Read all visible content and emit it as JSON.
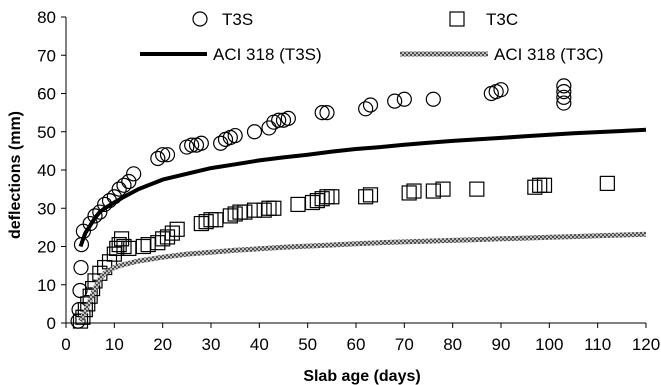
{
  "chart_data": {
    "type": "scatter",
    "xlabel": "Slab age (days)",
    "ylabel": "deflections (mm)",
    "xlim": [
      0,
      120
    ],
    "ylim": [
      0,
      80
    ],
    "xticks": [
      0,
      10,
      20,
      30,
      40,
      50,
      60,
      70,
      80,
      90,
      100,
      110,
      120
    ],
    "yticks": [
      0,
      10,
      20,
      30,
      40,
      50,
      60,
      70,
      80
    ],
    "grid": false,
    "legend_position": "top",
    "series": [
      {
        "name": "T3S",
        "kind": "scatter",
        "marker": "circle",
        "color": "#000000",
        "points": [
          [
            2.5,
            0.5
          ],
          [
            2.7,
            3.5
          ],
          [
            2.9,
            8.5
          ],
          [
            3.1,
            14.5
          ],
          [
            3.2,
            20.5
          ],
          [
            3.6,
            24.0
          ],
          [
            5.0,
            26.0
          ],
          [
            6.0,
            28.0
          ],
          [
            7.0,
            29.0
          ],
          [
            8.0,
            31.0
          ],
          [
            9.0,
            32.0
          ],
          [
            10.0,
            33.0
          ],
          [
            11.0,
            35.0
          ],
          [
            12.0,
            36.0
          ],
          [
            13.0,
            37.0
          ],
          [
            14.0,
            39.0
          ],
          [
            19.0,
            43.0
          ],
          [
            20.0,
            44.0
          ],
          [
            21.0,
            44.0
          ],
          [
            25.0,
            46.0
          ],
          [
            26.0,
            46.5
          ],
          [
            27.0,
            46.5
          ],
          [
            28.0,
            47.0
          ],
          [
            32.0,
            47.0
          ],
          [
            33.0,
            48.0
          ],
          [
            34.0,
            48.5
          ],
          [
            35.0,
            49.0
          ],
          [
            39.0,
            50.0
          ],
          [
            42.0,
            51.0
          ],
          [
            43.0,
            52.5
          ],
          [
            44.0,
            53.0
          ],
          [
            45.0,
            53.0
          ],
          [
            46.0,
            53.5
          ],
          [
            53.0,
            55.0
          ],
          [
            54.0,
            55.0
          ],
          [
            62.0,
            56.0
          ],
          [
            63.0,
            57.0
          ],
          [
            68.0,
            58.0
          ],
          [
            70.0,
            58.5
          ],
          [
            76.0,
            58.5
          ],
          [
            88.0,
            60.0
          ],
          [
            89.0,
            60.5
          ],
          [
            90.0,
            61.0
          ],
          [
            103.0,
            57.5
          ],
          [
            103.0,
            59.0
          ],
          [
            103.0,
            60.5
          ],
          [
            103.0,
            62.0
          ]
        ]
      },
      {
        "name": "T3C",
        "kind": "scatter",
        "marker": "square",
        "color": "#000000",
        "points": [
          [
            3.0,
            0.5
          ],
          [
            3.5,
            1.5
          ],
          [
            4.0,
            3.5
          ],
          [
            4.5,
            5.0
          ],
          [
            5.0,
            7.0
          ],
          [
            5.5,
            9.0
          ],
          [
            6.0,
            11.0
          ],
          [
            7.0,
            13.0
          ],
          [
            8.0,
            14.5
          ],
          [
            9.0,
            16.0
          ],
          [
            10.0,
            18.0
          ],
          [
            10.5,
            19.5
          ],
          [
            11.0,
            20.5
          ],
          [
            11.5,
            22.0
          ],
          [
            12.0,
            20.0
          ],
          [
            13.0,
            19.5
          ],
          [
            16.0,
            20.0
          ],
          [
            17.0,
            20.5
          ],
          [
            19.0,
            21.0
          ],
          [
            20.0,
            22.0
          ],
          [
            21.0,
            22.5
          ],
          [
            22.0,
            23.5
          ],
          [
            23.0,
            24.5
          ],
          [
            28.0,
            26.0
          ],
          [
            29.0,
            26.5
          ],
          [
            30.0,
            27.0
          ],
          [
            31.0,
            27.0
          ],
          [
            34.0,
            28.0
          ],
          [
            35.0,
            28.5
          ],
          [
            36.0,
            29.0
          ],
          [
            37.0,
            29.0
          ],
          [
            39.0,
            29.5
          ],
          [
            41.0,
            29.5
          ],
          [
            42.0,
            30.0
          ],
          [
            43.0,
            30.0
          ],
          [
            48.0,
            31.0
          ],
          [
            51.0,
            31.5
          ],
          [
            52.0,
            32.0
          ],
          [
            53.0,
            32.5
          ],
          [
            54.0,
            33.0
          ],
          [
            55.0,
            33.0
          ],
          [
            62.0,
            33.0
          ],
          [
            63.0,
            33.5
          ],
          [
            71.0,
            34.0
          ],
          [
            72.0,
            34.5
          ],
          [
            76.0,
            34.5
          ],
          [
            78.0,
            35.0
          ],
          [
            85.0,
            35.0
          ],
          [
            97.0,
            35.5
          ],
          [
            98.0,
            36.0
          ],
          [
            99.0,
            36.0
          ],
          [
            112.0,
            36.5
          ]
        ]
      },
      {
        "name": "ACI 318 (T3S)",
        "kind": "line",
        "style": "solid",
        "color": "#000000",
        "x": [
          3,
          4,
          5,
          6,
          7,
          8,
          10,
          12,
          15,
          20,
          25,
          30,
          35,
          40,
          45,
          50,
          55,
          60,
          65,
          70,
          75,
          80,
          85,
          90,
          95,
          100,
          105,
          110,
          115,
          120
        ],
        "y": [
          20,
          23.5,
          25.5,
          27.5,
          29,
          30,
          31.5,
          33,
          35,
          37.5,
          39,
          40.5,
          41.5,
          42.5,
          43.3,
          44,
          44.8,
          45.5,
          46,
          46.6,
          47.1,
          47.6,
          48,
          48.4,
          48.8,
          49.2,
          49.6,
          49.9,
          50.2,
          50.5
        ]
      },
      {
        "name": "ACI 318 (T3C)",
        "kind": "line",
        "style": "hatched",
        "color": "#8a8a8a",
        "x": [
          3,
          4,
          5,
          6,
          7,
          8,
          10,
          12,
          15,
          20,
          25,
          30,
          35,
          40,
          45,
          50,
          55,
          60,
          65,
          70,
          75,
          80,
          85,
          90,
          95,
          100,
          105,
          110,
          115,
          120
        ],
        "y": [
          0.5,
          3,
          6,
          9,
          11.5,
          13,
          14.5,
          15.3,
          16.2,
          17.2,
          18,
          18.5,
          19,
          19.4,
          19.8,
          20.1,
          20.4,
          20.7,
          21,
          21.2,
          21.4,
          21.6,
          21.8,
          22,
          22.2,
          22.4,
          22.6,
          22.8,
          23,
          23.2
        ]
      }
    ]
  }
}
